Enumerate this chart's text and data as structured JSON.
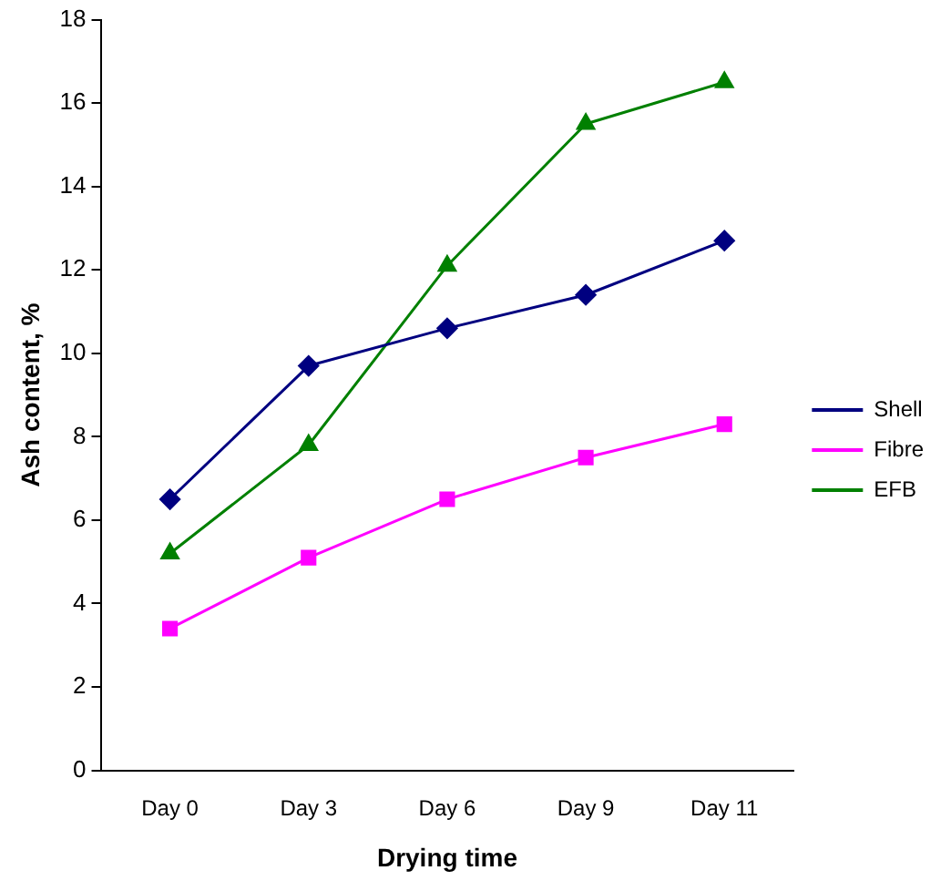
{
  "chart_data": {
    "type": "line",
    "xlabel": "Drying time",
    "ylabel": "Ash content, %",
    "categories": [
      "Day 0",
      "Day 3",
      "Day 6",
      "Day 9",
      "Day 11"
    ],
    "series": [
      {
        "name": "Shell",
        "color": "#000080",
        "marker": "diamond",
        "values": [
          6.5,
          9.7,
          10.6,
          11.4,
          12.7
        ]
      },
      {
        "name": "Fibre",
        "color": "#ff00ff",
        "marker": "square",
        "values": [
          3.4,
          5.1,
          6.5,
          7.5,
          8.3
        ]
      },
      {
        "name": "EFB",
        "color": "#008000",
        "marker": "triangle",
        "values": [
          5.2,
          7.8,
          12.1,
          15.5,
          16.5
        ]
      }
    ],
    "ylim": [
      0,
      18
    ],
    "yticks": [
      0,
      2,
      4,
      6,
      8,
      10,
      12,
      14,
      16,
      18
    ],
    "grid": false,
    "legend": "right",
    "line_style": "solid"
  }
}
